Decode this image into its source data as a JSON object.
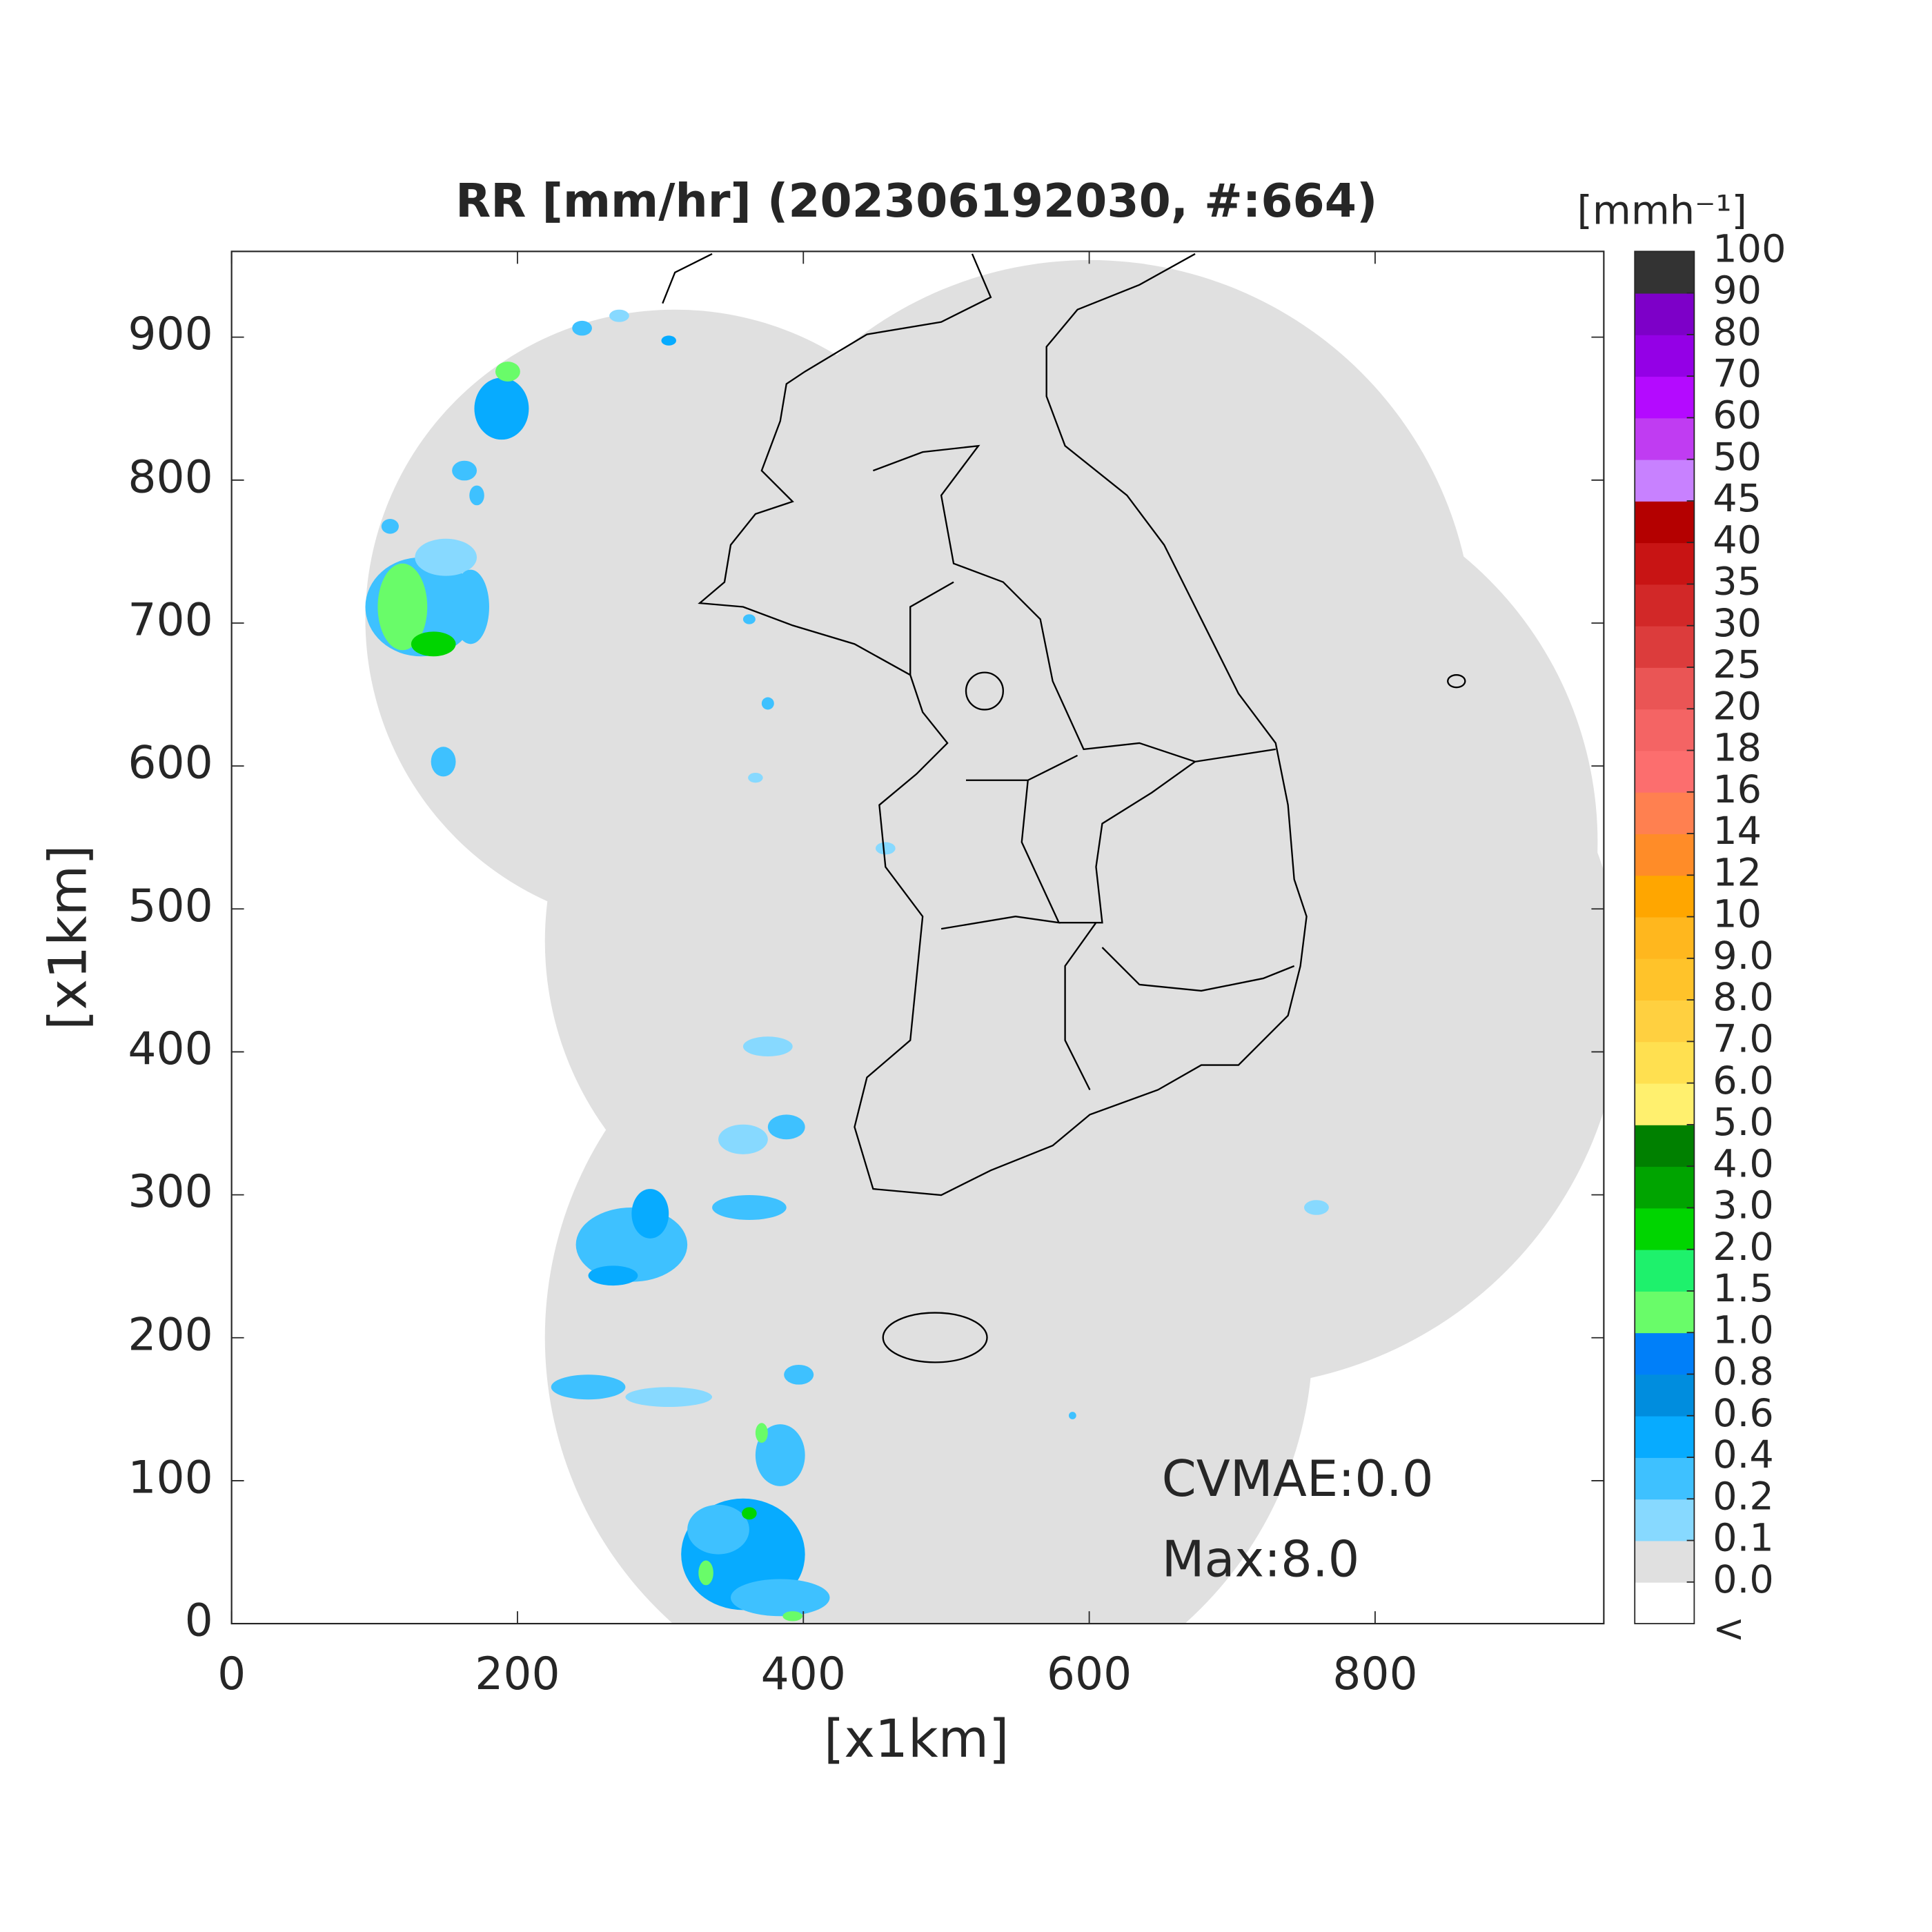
{
  "chart_data": {
    "type": "radar-map",
    "title": "RR [mm/hr] (202306192030, #:664)",
    "x_label": "[x1km]",
    "y_label": "[x1km]",
    "xlim": [
      0,
      960
    ],
    "ylim": [
      0,
      960
    ],
    "xticks": [
      0,
      200,
      400,
      600,
      800
    ],
    "yticks": [
      0,
      100,
      200,
      300,
      400,
      500,
      600,
      700,
      800,
      900
    ],
    "colorbar": {
      "label": "[mmh⁻¹]",
      "tick_labels": [
        "<",
        "0.0",
        "0.1",
        "0.2",
        "0.4",
        "0.6",
        "0.8",
        "1.0",
        "1.5",
        "2.0",
        "3.0",
        "4.0",
        "5.0",
        "6.0",
        "7.0",
        "8.0",
        "9.0",
        "10",
        "12",
        "14",
        "16",
        "18",
        "20",
        "25",
        "30",
        "35",
        "40",
        "45",
        "50",
        "60",
        "70",
        "80",
        "90",
        "100"
      ],
      "colors": [
        "#ffffff",
        "#e0e0e0",
        "#87d9ff",
        "#3ec1ff",
        "#07abff",
        "#008dde",
        "#007ff9",
        "#69fc69",
        "#1ef16c",
        "#00d500",
        "#00a400",
        "#008000",
        "#fff06e",
        "#ffe050",
        "#ffd040",
        "#ffc32a",
        "#ffb71e",
        "#ffa600",
        "#ff8c28",
        "#ff8050",
        "#fc6e6e",
        "#f46464",
        "#ea5555",
        "#dc3c3c",
        "#d22828",
        "#c81414",
        "#b40000",
        "#c881ff",
        "#c03cf2",
        "#b40aff",
        "#9400e6",
        "#7d00c8",
        "#333333"
      ]
    },
    "annotations": [
      "CVMAE:0.0",
      "Max:8.0"
    ]
  }
}
